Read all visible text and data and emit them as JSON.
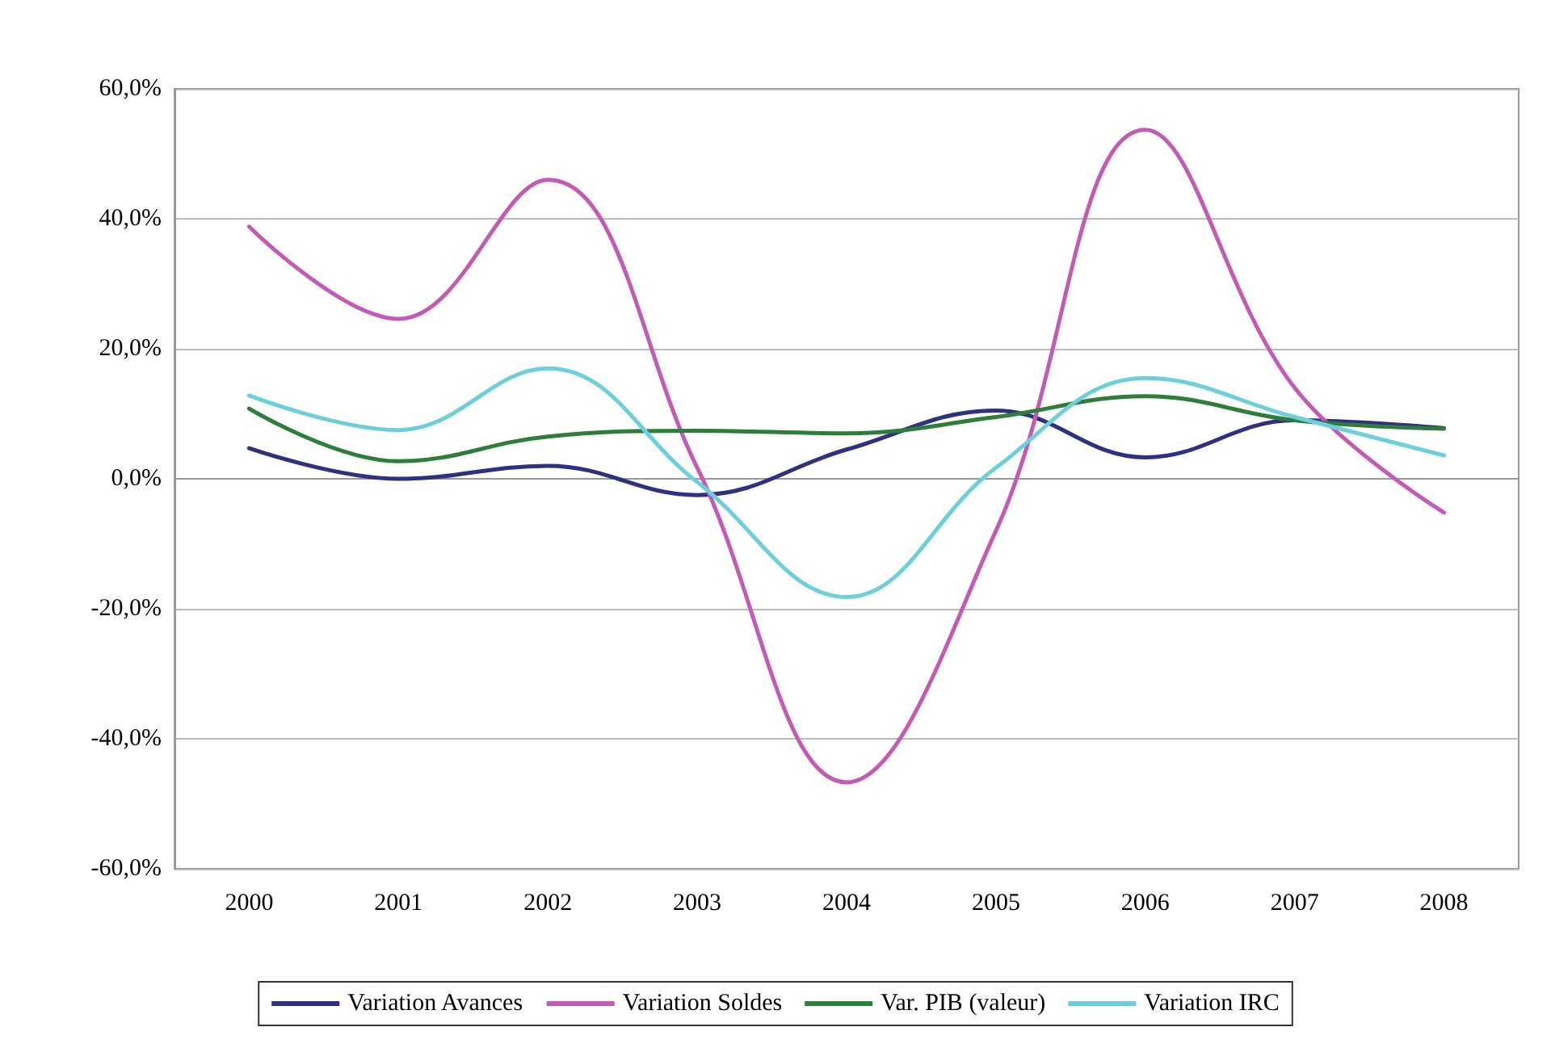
{
  "chart_data": {
    "type": "line",
    "categories": [
      "2000",
      "2001",
      "2002",
      "2003",
      "2004",
      "2005",
      "2006",
      "2007",
      "2008"
    ],
    "series": [
      {
        "name": "Variation Avances",
        "color": "#2e3081",
        "values": [
          4.7,
          0,
          2,
          -2.5,
          4.5,
          10.5,
          3.3,
          9,
          7.8
        ]
      },
      {
        "name": "Variation Soldes",
        "color": "#c35bb5",
        "values": [
          38.8,
          24.6,
          46,
          1.7,
          -46.7,
          -8,
          53.7,
          14,
          -5.2
        ]
      },
      {
        "name": "Var. PIB (valeur)",
        "color": "#2d7d3b",
        "values": [
          10.8,
          2.7,
          6.5,
          7.4,
          7,
          9.5,
          12.7,
          9,
          7.7
        ]
      },
      {
        "name": "Variation IRC",
        "color": "#6dcfdc",
        "values": [
          12.8,
          7.5,
          17,
          -0.5,
          -18.2,
          1.7,
          15.5,
          9.5,
          3.6
        ]
      }
    ],
    "ylim": [
      -60,
      60
    ],
    "yticks": [
      {
        "value": -60,
        "label": "-60,0%"
      },
      {
        "value": -40,
        "label": "-40,0%"
      },
      {
        "value": -20,
        "label": "-20,0%"
      },
      {
        "value": 0,
        "label": "0,0%"
      },
      {
        "value": 20,
        "label": "20,0%"
      },
      {
        "value": 40,
        "label": "40,0%"
      },
      {
        "value": 60,
        "label": "60,0%"
      }
    ],
    "grid": "y",
    "legend": "bottom",
    "marker": "none",
    "line_style": "solid"
  }
}
